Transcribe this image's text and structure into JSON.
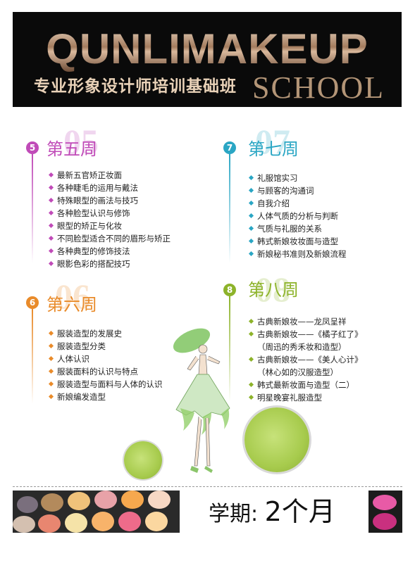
{
  "header": {
    "brand": "QUNLIMAKEUP",
    "subtitle": "专业形象设计师培训基础班",
    "school": "SCHOOL"
  },
  "weeks": [
    {
      "badge": "5",
      "bignum": "05",
      "title": "第五周",
      "color": "#c04bb8",
      "items": [
        "最新五官矫正妆面",
        "各种睫毛的运用与戴法",
        "特殊眼型的画法与技巧",
        "各种脸型认识与修饰",
        "眼型的矫正与化妆",
        "不同脸型适合不同的眉形与矫正",
        "各种典型的修饰技法",
        "眼影色彩的搭配技巧"
      ]
    },
    {
      "badge": "6",
      "bignum": "06",
      "title": "第六周",
      "color": "#e98b2a",
      "items": [
        "服装造型的发展史",
        "服装造型分类",
        "人体认识",
        "服装面料的认识与特点",
        "服装造型与面料与人体的认识",
        "新娘编发造型"
      ]
    },
    {
      "badge": "7",
      "bignum": "07",
      "title": "第七周",
      "color": "#2aa6c4",
      "items": [
        "礼服馆实习",
        "与顾客的沟通词",
        "自我介绍",
        "人体气质的分析与判断",
        "气质与礼服的关系",
        "韩式新娘妆妆面与造型",
        "新娘秘书准则及新娘流程"
      ]
    },
    {
      "badge": "8",
      "bignum": "08",
      "title": "第八周",
      "color": "#8db32a",
      "items": [
        "古典新娘妆——龙凤呈祥",
        "古典新娘妆——《橘子红了》",
        "（周迅的秀禾妆和造型）",
        "古典新娘妆——《美人心计》",
        "（林心如的汉服造型）",
        "韩式最新妆面与造型（二）",
        "明星晚宴礼服造型"
      ]
    }
  ],
  "term": {
    "label": "学期:",
    "value": "2个月"
  }
}
